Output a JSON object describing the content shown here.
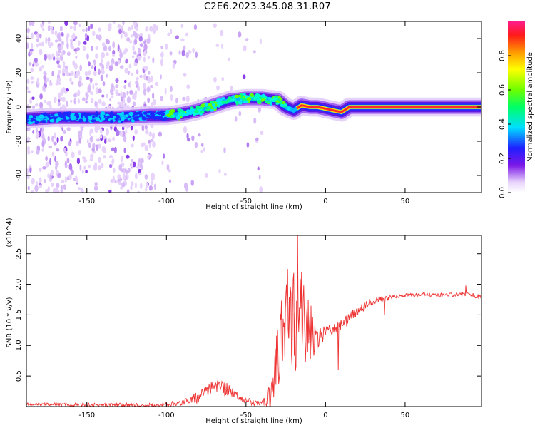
{
  "title": "C2E6.2023.345.08.31.R07",
  "chart_data": [
    {
      "type": "heatmap",
      "xlabel": "Height of straight line (km)",
      "ylabel": "Frequency (Hz)",
      "xlim": [
        -188,
        98
      ],
      "ylim": [
        -50,
        50
      ],
      "xticks": [
        "-150",
        "-100",
        "-50",
        "0",
        "50"
      ],
      "xtick_values": [
        -150,
        -100,
        -50,
        0,
        50
      ],
      "yticks": [
        "-40",
        "-20",
        "0",
        "20",
        "40"
      ],
      "ytick_values": [
        -40,
        -20,
        0,
        20,
        40
      ],
      "colorbar": {
        "label": "Normalized spectral amplitude",
        "range": [
          0,
          1
        ],
        "ticks": [
          "0.0",
          "0.2",
          "0.4",
          "0.6",
          "0.8"
        ],
        "tick_values": [
          0,
          0.2,
          0.4,
          0.6,
          0.8
        ]
      },
      "ridge": {
        "x": [
          -188,
          -170,
          -150,
          -130,
          -110,
          -100,
          -90,
          -80,
          -70,
          -60,
          -50,
          -40,
          -30,
          -25,
          -20,
          -15,
          -10,
          -5,
          0,
          5,
          10,
          15,
          20,
          50,
          98
        ],
        "freq": [
          -7,
          -6,
          -6,
          -6,
          -5,
          -5,
          -4,
          -2,
          1,
          4,
          5,
          5,
          4,
          0,
          -2,
          1,
          0,
          0,
          -1,
          -2,
          -3,
          0,
          0,
          0,
          0
        ]
      }
    },
    {
      "type": "line",
      "xlabel": "Height of straight line (km)",
      "ylabel": "SNR (10 * v/v)",
      "scale_label": "(x10^4)",
      "xlim": [
        -188,
        98
      ],
      "ylim": [
        0,
        2.8
      ],
      "xticks": [
        "-150",
        "-100",
        "-50",
        "0",
        "50"
      ],
      "xtick_values": [
        -150,
        -100,
        -50,
        0,
        50
      ],
      "yticks": [
        "0.5",
        "1.0",
        "1.5",
        "2.0",
        "2.5"
      ],
      "ytick_values": [
        0.5,
        1.0,
        1.5,
        2.0,
        2.5
      ],
      "color": "#ee3333",
      "envelope": {
        "x": [
          -188,
          -150,
          -110,
          -90,
          -80,
          -75,
          -70,
          -65,
          -60,
          -55,
          -50,
          -45,
          -40,
          -35,
          -32,
          -30,
          -28,
          -25,
          -20,
          -18,
          -15,
          -10,
          -5,
          0,
          5,
          10,
          15,
          20,
          25,
          30,
          40,
          50,
          60,
          70,
          80,
          90,
          98
        ],
        "y": [
          0.04,
          0.03,
          0.02,
          0.06,
          0.15,
          0.25,
          0.32,
          0.3,
          0.25,
          0.18,
          0.1,
          0.06,
          0.05,
          0.1,
          0.4,
          0.8,
          1.1,
          1.2,
          1.3,
          1.4,
          1.5,
          1.2,
          1.1,
          1.2,
          1.28,
          1.32,
          1.45,
          1.55,
          1.65,
          1.72,
          1.78,
          1.82,
          1.83,
          1.82,
          1.83,
          1.83,
          1.8
        ]
      },
      "noise": {
        "x": [
          -188,
          -90,
          -80,
          -60,
          -50,
          -40,
          -35,
          -30,
          -25,
          -20,
          -15,
          -10,
          -5,
          0,
          10,
          20,
          35,
          50,
          98
        ],
        "amp": [
          0.02,
          0.04,
          0.1,
          0.12,
          0.05,
          0.04,
          0.25,
          0.6,
          0.8,
          0.9,
          0.8,
          0.5,
          0.2,
          0.12,
          0.12,
          0.08,
          0.05,
          0.03,
          0.04
        ]
      },
      "spikes": [
        {
          "x": -30,
          "y": 1.25
        },
        {
          "x": -24,
          "y": 2.25
        },
        {
          "x": -22,
          "y": 1.95
        },
        {
          "x": -17.5,
          "y": 2.8
        },
        {
          "x": -15,
          "y": 2.2
        },
        {
          "x": -11,
          "y": 1.75
        },
        {
          "x": -9,
          "y": 1.65
        },
        {
          "x": 8,
          "y": 0.6
        },
        {
          "x": 37,
          "y": 1.5
        },
        {
          "x": 88,
          "y": 1.98
        }
      ]
    }
  ]
}
